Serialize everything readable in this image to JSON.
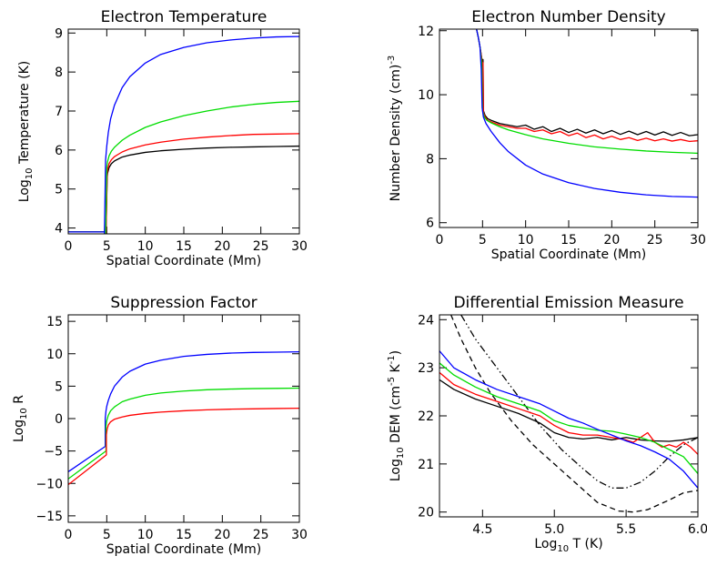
{
  "chart_data": [
    {
      "id": "temp",
      "type": "line",
      "title": "Electron Temperature",
      "xlabel": "Spatial Coordinate (Mm)",
      "ylabel": {
        "pre": "Log",
        "sub": "10",
        "post": " Temperature (K)"
      },
      "xlim": [
        0,
        30
      ],
      "ylim": [
        3.85,
        9.1
      ],
      "xticks": [
        0,
        5,
        10,
        15,
        20,
        25,
        30
      ],
      "xtick_labels": [
        "0",
        "5",
        "10",
        "15",
        "20",
        "25",
        "30"
      ],
      "yticks": [
        4,
        5,
        6,
        7,
        8,
        9
      ],
      "ytick_labels": [
        "4",
        "5",
        "6",
        "7",
        "8",
        "9"
      ],
      "series": [
        {
          "color": "#000000",
          "x": [
            0,
            4.9,
            4.9,
            5.05,
            5.1,
            5.3,
            5.6,
            6,
            7,
            8,
            10,
            12,
            15,
            18,
            21,
            24,
            27,
            30
          ],
          "y": [
            3.9,
            3.9,
            3.85,
            5.3,
            5.4,
            5.55,
            5.65,
            5.72,
            5.82,
            5.87,
            5.94,
            5.98,
            6.02,
            6.05,
            6.07,
            6.08,
            6.09,
            6.1
          ]
        },
        {
          "color": "#ff0000",
          "x": [
            0,
            4.9,
            4.9,
            5.05,
            5.1,
            5.3,
            5.6,
            6,
            7,
            8,
            10,
            12,
            15,
            18,
            21,
            24,
            27,
            30
          ],
          "y": [
            3.9,
            3.9,
            3.85,
            5.4,
            5.5,
            5.65,
            5.75,
            5.83,
            5.95,
            6.03,
            6.13,
            6.2,
            6.28,
            6.33,
            6.37,
            6.4,
            6.41,
            6.42
          ]
        },
        {
          "color": "#00dd00",
          "x": [
            0,
            4.85,
            4.85,
            5.0,
            5.1,
            5.3,
            5.6,
            6,
            7,
            8,
            10,
            12,
            15,
            18,
            21,
            24,
            27,
            30
          ],
          "y": [
            3.9,
            3.9,
            3.85,
            5.55,
            5.7,
            5.85,
            5.97,
            6.07,
            6.25,
            6.38,
            6.58,
            6.72,
            6.88,
            7.0,
            7.1,
            7.17,
            7.22,
            7.25
          ]
        },
        {
          "color": "#0000ff",
          "x": [
            0,
            4.7,
            4.7,
            4.85,
            5.0,
            5.2,
            5.5,
            6,
            7,
            8,
            10,
            12,
            15,
            18,
            21,
            24,
            27,
            30
          ],
          "y": [
            3.9,
            3.9,
            3.85,
            5.75,
            6.1,
            6.45,
            6.8,
            7.15,
            7.6,
            7.88,
            8.23,
            8.45,
            8.63,
            8.75,
            8.82,
            8.87,
            8.9,
            8.91
          ]
        }
      ]
    },
    {
      "id": "dens",
      "type": "line",
      "title": "Electron Number Density",
      "xlabel": "Spatial Coordinate (Mm)",
      "ylabel": {
        "pre": "Number Density (cm",
        "sup": "-3",
        "post": ")"
      },
      "xlim": [
        0,
        30
      ],
      "ylim": [
        5.85,
        12.05
      ],
      "xticks": [
        0,
        5,
        10,
        15,
        20,
        25,
        30
      ],
      "xtick_labels": [
        "0",
        "5",
        "10",
        "15",
        "20",
        "25",
        "30"
      ],
      "yticks": [
        6,
        8,
        10,
        12
      ],
      "ytick_labels": [
        "6",
        "8",
        "10",
        "12"
      ],
      "series": [
        {
          "color": "#000000",
          "x": [
            4.3,
            4.5,
            4.7,
            4.9,
            5.0,
            5.05,
            5.1,
            5.3,
            5.6,
            6,
            7,
            8,
            9,
            10,
            11,
            12,
            13,
            14,
            15,
            16,
            17,
            18,
            19,
            20,
            21,
            22,
            23,
            24,
            25,
            26,
            27,
            28,
            29,
            30
          ],
          "y": [
            12.05,
            11.8,
            11.5,
            11.15,
            11.0,
            11.1,
            9.5,
            9.35,
            9.25,
            9.2,
            9.1,
            9.05,
            9.0,
            9.05,
            8.92,
            9.0,
            8.85,
            8.95,
            8.82,
            8.92,
            8.8,
            8.9,
            8.78,
            8.88,
            8.76,
            8.86,
            8.75,
            8.85,
            8.74,
            8.84,
            8.73,
            8.82,
            8.72,
            8.75
          ]
        },
        {
          "color": "#ff0000",
          "x": [
            4.3,
            4.5,
            4.7,
            4.9,
            5.0,
            5.05,
            5.1,
            5.3,
            5.6,
            6,
            7,
            8,
            9,
            10,
            11,
            12,
            13,
            14,
            15,
            16,
            17,
            18,
            19,
            20,
            21,
            22,
            23,
            24,
            25,
            26,
            27,
            28,
            29,
            30
          ],
          "y": [
            12.05,
            11.8,
            11.5,
            11.15,
            10.9,
            11.0,
            9.45,
            9.3,
            9.2,
            9.15,
            9.05,
            9.0,
            8.95,
            8.95,
            8.85,
            8.9,
            8.78,
            8.85,
            8.72,
            8.8,
            8.66,
            8.74,
            8.62,
            8.7,
            8.6,
            8.66,
            8.57,
            8.64,
            8.56,
            8.62,
            8.55,
            8.6,
            8.54,
            8.56
          ]
        },
        {
          "color": "#00dd00",
          "x": [
            4.3,
            4.5,
            4.7,
            4.9,
            5.0,
            5.2,
            5.5,
            6,
            7,
            8,
            10,
            12,
            15,
            18,
            21,
            24,
            27,
            30
          ],
          "y": [
            12.05,
            11.8,
            11.5,
            11.0,
            9.5,
            9.3,
            9.2,
            9.12,
            9.0,
            8.9,
            8.75,
            8.62,
            8.48,
            8.37,
            8.3,
            8.24,
            8.2,
            8.17
          ]
        },
        {
          "color": "#0000ff",
          "x": [
            4.3,
            4.5,
            4.7,
            4.85,
            4.95,
            5.1,
            5.4,
            6,
            7,
            8,
            10,
            12,
            15,
            18,
            21,
            24,
            27,
            30
          ],
          "y": [
            12.05,
            11.8,
            11.5,
            10.8,
            9.6,
            9.3,
            9.1,
            8.85,
            8.5,
            8.22,
            7.8,
            7.52,
            7.25,
            7.07,
            6.95,
            6.87,
            6.82,
            6.8
          ]
        }
      ]
    },
    {
      "id": "supp",
      "type": "line",
      "title": "Suppression Factor",
      "xlabel": "Spatial Coordinate (Mm)",
      "ylabel": {
        "pre": "Log",
        "sub": "10",
        "post": " R"
      },
      "xlim": [
        0,
        30
      ],
      "ylim": [
        -16,
        16
      ],
      "xticks": [
        0,
        5,
        10,
        15,
        20,
        25,
        30
      ],
      "xtick_labels": [
        "0",
        "5",
        "10",
        "15",
        "20",
        "25",
        "30"
      ],
      "yticks": [
        -15,
        -10,
        -5,
        0,
        5,
        10,
        15
      ],
      "ytick_labels": [
        "−15",
        "−10",
        "−5",
        "0",
        "5",
        "10",
        "15"
      ],
      "series": [
        {
          "color": "#0000ff",
          "x": [
            0,
            4.8,
            4.8,
            4.9,
            5.0,
            5.2,
            5.5,
            6,
            7,
            8,
            10,
            12,
            15,
            18,
            21,
            24,
            27,
            30
          ],
          "y": [
            -8.2,
            -4.3,
            0.0,
            1.2,
            1.9,
            2.8,
            3.8,
            5.0,
            6.4,
            7.3,
            8.4,
            9.0,
            9.6,
            9.9,
            10.1,
            10.2,
            10.25,
            10.3
          ]
        },
        {
          "color": "#00dd00",
          "x": [
            0,
            4.9,
            4.9,
            5.0,
            5.2,
            5.5,
            6,
            7,
            8,
            10,
            12,
            15,
            18,
            21,
            24,
            27,
            30
          ],
          "y": [
            -9.3,
            -5.0,
            -1.2,
            -0.3,
            0.5,
            1.2,
            1.8,
            2.6,
            3.0,
            3.6,
            3.95,
            4.25,
            4.45,
            4.55,
            4.62,
            4.66,
            4.7
          ]
        },
        {
          "color": "#ff0000",
          "x": [
            0,
            4.95,
            4.95,
            5.05,
            5.2,
            5.5,
            6,
            7,
            8,
            10,
            12,
            15,
            18,
            21,
            24,
            27,
            30
          ],
          "y": [
            -10.2,
            -5.6,
            -2.5,
            -1.6,
            -1.0,
            -0.5,
            -0.1,
            0.25,
            0.5,
            0.8,
            1.0,
            1.2,
            1.35,
            1.45,
            1.5,
            1.55,
            1.6
          ]
        }
      ]
    },
    {
      "id": "dem",
      "type": "line",
      "title": "Differential Emission Measure",
      "xlabel": {
        "pre": "Log",
        "sub": "10",
        "post": " T (K)"
      },
      "ylabel": {
        "pre": "Log",
        "sub": "10",
        "post": " DEM (cm",
        "sup": "-5",
        "post2": " K",
        "sup2": "-1",
        "post3": ")"
      },
      "xlim": [
        4.2,
        6.0
      ],
      "ylim": [
        19.9,
        24.1
      ],
      "xticks": [
        4.5,
        5.0,
        5.5,
        6.0
      ],
      "xtick_labels": [
        "4.5",
        "5.0",
        "5.5",
        "6.0"
      ],
      "yticks": [
        20,
        21,
        22,
        23,
        24
      ],
      "ytick_labels": [
        "20",
        "21",
        "22",
        "23",
        "24"
      ],
      "series": [
        {
          "color": "#000000",
          "style": "dashed",
          "x": [
            4.28,
            4.35,
            4.45,
            4.55,
            4.7,
            4.85,
            5.0,
            5.15,
            5.3,
            5.45,
            5.55,
            5.65,
            5.8,
            5.9,
            6.0
          ],
          "y": [
            24.1,
            23.6,
            23.0,
            22.5,
            21.9,
            21.4,
            21.0,
            20.6,
            20.2,
            20.02,
            20.0,
            20.05,
            20.25,
            20.4,
            20.45
          ]
        },
        {
          "color": "#000000",
          "style": "dashdotdot",
          "x": [
            4.35,
            4.45,
            4.6,
            4.75,
            4.9,
            5.05,
            5.2,
            5.3,
            5.4,
            5.5,
            5.6,
            5.7,
            5.8,
            5.9,
            6.0
          ],
          "y": [
            24.1,
            23.6,
            23.0,
            22.4,
            21.8,
            21.3,
            20.9,
            20.65,
            20.5,
            20.5,
            20.62,
            20.85,
            21.15,
            21.4,
            21.55
          ]
        },
        {
          "color": "#000000",
          "style": "solid",
          "x": [
            4.2,
            4.3,
            4.45,
            4.6,
            4.75,
            4.9,
            5.0,
            5.1,
            5.2,
            5.3,
            5.4,
            5.5,
            5.6,
            5.7,
            5.8,
            5.9,
            6.0
          ],
          "y": [
            22.75,
            22.55,
            22.35,
            22.2,
            22.05,
            21.85,
            21.65,
            21.55,
            21.52,
            21.55,
            21.5,
            21.55,
            21.5,
            21.48,
            21.47,
            21.5,
            21.55
          ]
        },
        {
          "color": "#ff0000",
          "style": "solid",
          "x": [
            4.2,
            4.3,
            4.45,
            4.6,
            4.75,
            4.9,
            5.0,
            5.1,
            5.2,
            5.3,
            5.4,
            5.5,
            5.55,
            5.6,
            5.65,
            5.7,
            5.75,
            5.8,
            5.85,
            5.9,
            5.95,
            6.0
          ],
          "y": [
            22.9,
            22.65,
            22.45,
            22.3,
            22.15,
            22.0,
            21.8,
            21.65,
            21.6,
            21.6,
            21.55,
            21.5,
            21.45,
            21.55,
            21.65,
            21.45,
            21.35,
            21.4,
            21.35,
            21.45,
            21.35,
            21.2
          ]
        },
        {
          "color": "#00dd00",
          "style": "solid",
          "x": [
            4.2,
            4.3,
            4.45,
            4.6,
            4.75,
            4.9,
            5.0,
            5.1,
            5.2,
            5.3,
            5.4,
            5.5,
            5.6,
            5.7,
            5.8,
            5.9,
            6.0
          ],
          "y": [
            23.1,
            22.85,
            22.6,
            22.4,
            22.25,
            22.1,
            21.9,
            21.8,
            21.75,
            21.7,
            21.68,
            21.62,
            21.55,
            21.45,
            21.3,
            21.15,
            20.8
          ]
        },
        {
          "color": "#0000ff",
          "style": "solid",
          "x": [
            4.2,
            4.3,
            4.45,
            4.6,
            4.75,
            4.9,
            5.0,
            5.1,
            5.2,
            5.3,
            5.4,
            5.5,
            5.6,
            5.7,
            5.8,
            5.9,
            6.0
          ],
          "y": [
            23.35,
            23.0,
            22.75,
            22.55,
            22.4,
            22.25,
            22.1,
            21.95,
            21.85,
            21.72,
            21.6,
            21.48,
            21.38,
            21.25,
            21.1,
            20.85,
            20.5
          ]
        }
      ]
    }
  ]
}
